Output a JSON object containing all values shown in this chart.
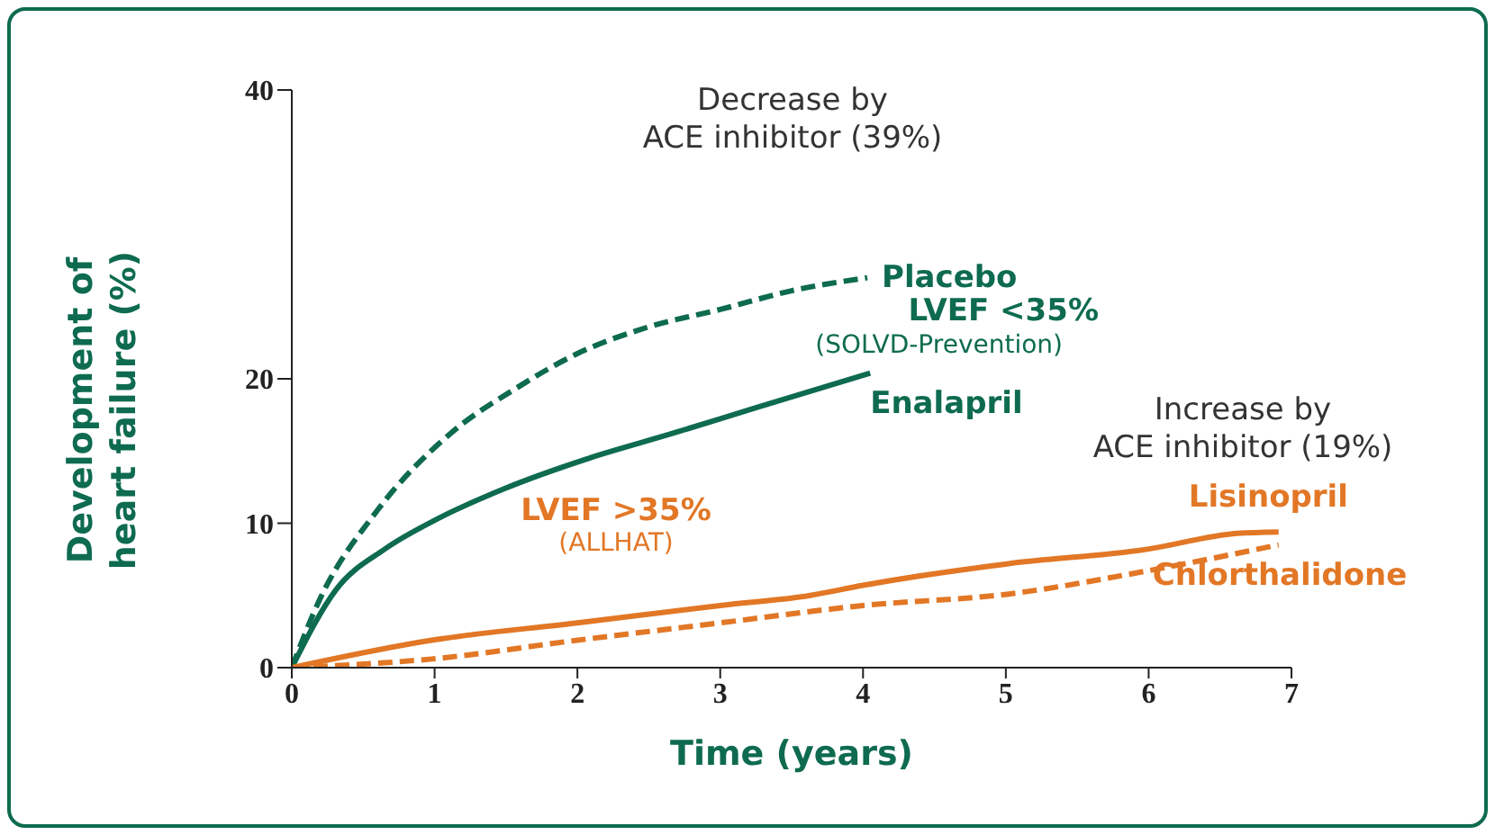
{
  "chart_data": {
    "type": "line",
    "xlabel": "Time (years)",
    "ylabel": "Development of heart failure (%)",
    "xlim": [
      0,
      7
    ],
    "xticks": [
      0,
      1,
      2,
      3,
      4,
      5,
      6,
      7
    ],
    "ylim": [
      0,
      40
    ],
    "yticks": [
      0,
      10,
      20,
      40
    ],
    "marker": "none",
    "annotations": [
      "Decrease by",
      "ACE inhibitor (39%)",
      "LVEF <35%",
      "(SOLVD-Prevention)",
      "Increase by",
      "ACE inhibitor (19%)",
      "LVEF >35%",
      "(ALLHAT)"
    ],
    "series": [
      {
        "name": "Placebo",
        "color": "#0e6b4f",
        "line_style": "dashed",
        "x": [
          0,
          0.19,
          0.6,
          1.11,
          1.58,
          1.99,
          2.5,
          3.0,
          3.5,
          4.03
        ],
        "values": [
          0,
          4.6,
          10.9,
          16.2,
          19.4,
          21.7,
          23.6,
          24.8,
          26.1,
          27
        ]
      },
      {
        "name": "Enalapril",
        "color": "#0e6b4f",
        "line_style": "solid",
        "x": [
          0,
          0.31,
          0.65,
          1.02,
          1.49,
          2.08,
          2.66,
          3.25,
          4.05
        ],
        "values": [
          0,
          5.4,
          8.2,
          10.3,
          12.4,
          14.5,
          16.2,
          18,
          20.4
        ]
      },
      {
        "name": "Lisinopril",
        "color": "#e27726",
        "line_style": "solid",
        "x": [
          0,
          0.98,
          2.0,
          3.0,
          3.63,
          4.0,
          5.02,
          5.99,
          6.62,
          6.91
        ],
        "values": [
          0,
          1.9,
          3.1,
          4.3,
          5.0,
          5.7,
          7.2,
          8.2,
          9.3,
          9.4
        ]
      },
      {
        "name": "Chlorthalidone",
        "color": "#e27726",
        "line_style": "dashed",
        "x": [
          0,
          0.98,
          2.0,
          3.0,
          4.0,
          5.02,
          5.99,
          6.91
        ],
        "values": [
          0,
          0.6,
          1.9,
          3.1,
          4.3,
          5.1,
          6.7,
          8.5
        ]
      }
    ]
  }
}
